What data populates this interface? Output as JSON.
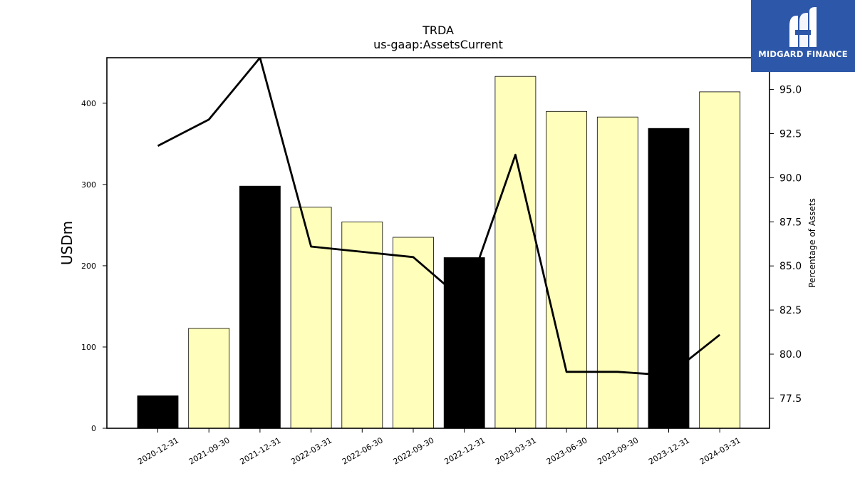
{
  "chart_data": {
    "type": "bar",
    "title": "TRDA",
    "subtitle": "us-gaap:AssetsCurrent",
    "ylabel": "USDm",
    "y2label": "Percentage of Assets",
    "categories": [
      "2020-12-31",
      "2021-09-30",
      "2021-12-31",
      "2022-03-31",
      "2022-06-30",
      "2022-09-30",
      "2022-12-31",
      "2023-03-31",
      "2023-06-30",
      "2023-09-30",
      "2023-12-31",
      "2024-03-31"
    ],
    "series": [
      {
        "type": "bar",
        "values": [
          40,
          123,
          298,
          272,
          254,
          235,
          210,
          433,
          390,
          383,
          369,
          414
        ]
      },
      {
        "type": "line",
        "axis": "right",
        "values": [
          91.8,
          93.3,
          96.8,
          86.1,
          85.8,
          85.5,
          83.0,
          91.3,
          79.0,
          79.0,
          78.8,
          81.1
        ]
      }
    ],
    "bar_colors": [
      "#000000",
      "#ffffbb",
      "#000000",
      "#ffffbb",
      "#ffffbb",
      "#ffffbb",
      "#000000",
      "#ffffbb",
      "#ffffbb",
      "#ffffbb",
      "#000000",
      "#ffffbb"
    ],
    "line_color": "#000000",
    "ylim": [
      0,
      456
    ],
    "yticks": [
      0,
      100,
      200,
      300,
      400
    ],
    "y2lim": [
      75.8,
      96.8
    ],
    "y2ticks": [
      "77.5",
      "80.0",
      "82.5",
      "85.0",
      "87.5",
      "90.0",
      "92.5",
      "95.0"
    ],
    "grid": false,
    "legend": "none"
  },
  "logo": {
    "text": "MIDGARD FINANCE",
    "color": "#2d57a8"
  }
}
